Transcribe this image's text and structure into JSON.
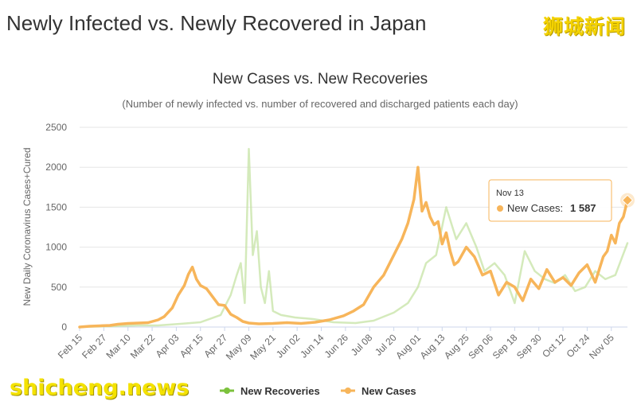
{
  "header": {
    "title": "Newly Infected vs. Newly Recovered in Japan",
    "brand": "狮城新闻",
    "watermark": "shicheng.news"
  },
  "colors": {
    "cases": "#f7b55a",
    "recoveries": "#c6e3a4",
    "recoveries_marker": "#7cc23c",
    "grid": "#e6e6e6"
  },
  "chart_data": {
    "type": "line",
    "title": "New Cases vs. New Recoveries",
    "subtitle": "(Number of newly infected vs. number of recovered and discharged patients each day)",
    "ylabel": "New Daily Coronavirus Cases+Cured",
    "ylim": [
      0,
      2500
    ],
    "yticks": [
      0,
      500,
      1000,
      1500,
      2000,
      2500
    ],
    "x_start": "Feb 15",
    "x_end": "Nov 13",
    "xticks": [
      "Feb 15",
      "Feb 27",
      "Mar 10",
      "Mar 22",
      "Apr 03",
      "Apr 15",
      "Apr 27",
      "May 09",
      "May 21",
      "Jun 02",
      "Jun 14",
      "Jun 26",
      "Jul 08",
      "Jul 20",
      "Aug 01",
      "Aug 13",
      "Aug 25",
      "Sep 06",
      "Sep 18",
      "Sep 30",
      "Oct 12",
      "Oct 24",
      "Nov 05"
    ],
    "legend": {
      "position": "bottom"
    },
    "series": [
      {
        "name": "New Cases",
        "x": [
          "Feb 15",
          "Feb 20",
          "Feb 25",
          "Mar 01",
          "Mar 05",
          "Mar 10",
          "Mar 15",
          "Mar 20",
          "Mar 25",
          "Mar 28",
          "Apr 01",
          "Apr 04",
          "Apr 07",
          "Apr 09",
          "Apr 11",
          "Apr 13",
          "Apr 15",
          "Apr 18",
          "Apr 21",
          "Apr 24",
          "Apr 27",
          "Apr 30",
          "May 03",
          "May 06",
          "May 09",
          "May 14",
          "May 21",
          "May 28",
          "Jun 04",
          "Jun 11",
          "Jun 18",
          "Jun 25",
          "Jun 30",
          "Jul 05",
          "Jul 10",
          "Jul 15",
          "Jul 20",
          "Jul 24",
          "Jul 27",
          "Jul 30",
          "Aug 01",
          "Aug 03",
          "Aug 05",
          "Aug 07",
          "Aug 09",
          "Aug 11",
          "Aug 13",
          "Aug 15",
          "Aug 17",
          "Aug 19",
          "Aug 21",
          "Aug 25",
          "Aug 29",
          "Sep 02",
          "Sep 06",
          "Sep 10",
          "Sep 14",
          "Sep 18",
          "Sep 22",
          "Sep 26",
          "Sep 30",
          "Oct 04",
          "Oct 08",
          "Oct 12",
          "Oct 16",
          "Oct 20",
          "Oct 24",
          "Oct 28",
          "Nov 01",
          "Nov 03",
          "Nov 05",
          "Nov 07",
          "Nov 09",
          "Nov 11",
          "Nov 13"
        ],
        "values": [
          0,
          10,
          15,
          20,
          35,
          45,
          50,
          55,
          90,
          130,
          240,
          400,
          520,
          660,
          750,
          600,
          520,
          480,
          380,
          280,
          270,
          160,
          120,
          70,
          50,
          40,
          45,
          55,
          45,
          60,
          90,
          140,
          200,
          280,
          500,
          650,
          900,
          1100,
          1300,
          1600,
          2000,
          1450,
          1560,
          1380,
          1280,
          1320,
          1040,
          1180,
          950,
          780,
          820,
          1000,
          880,
          650,
          700,
          400,
          560,
          500,
          330,
          600,
          480,
          720,
          560,
          620,
          520,
          680,
          780,
          560,
          880,
          950,
          1150,
          1050,
          1300,
          1380,
          1587
        ]
      },
      {
        "name": "New Recoveries",
        "x": [
          "Feb 15",
          "Mar 01",
          "Mar 15",
          "Mar 25",
          "Apr 05",
          "Apr 15",
          "Apr 25",
          "Apr 30",
          "May 03",
          "May 05",
          "May 07",
          "May 09",
          "May 11",
          "May 13",
          "May 15",
          "May 17",
          "May 19",
          "May 21",
          "May 25",
          "Jun 01",
          "Jun 10",
          "Jun 20",
          "Jul 01",
          "Jul 10",
          "Jul 20",
          "Jul 27",
          "Aug 01",
          "Aug 05",
          "Aug 10",
          "Aug 15",
          "Aug 20",
          "Aug 25",
          "Aug 30",
          "Sep 03",
          "Sep 08",
          "Sep 13",
          "Sep 18",
          "Sep 23",
          "Sep 28",
          "Oct 03",
          "Oct 08",
          "Oct 13",
          "Oct 18",
          "Oct 23",
          "Oct 28",
          "Nov 02",
          "Nov 07",
          "Nov 13"
        ],
        "values": [
          0,
          10,
          20,
          20,
          40,
          60,
          150,
          400,
          650,
          800,
          300,
          2230,
          900,
          1200,
          500,
          300,
          700,
          200,
          150,
          120,
          100,
          60,
          50,
          80,
          180,
          300,
          500,
          800,
          900,
          1500,
          1100,
          1300,
          1000,
          700,
          800,
          650,
          300,
          950,
          700,
          600,
          550,
          650,
          450,
          500,
          700,
          600,
          650,
          1050
        ]
      }
    ],
    "tooltip": {
      "date": "Nov 13",
      "series": "New Cases",
      "label": "New Cases:",
      "value": "1 587"
    }
  }
}
